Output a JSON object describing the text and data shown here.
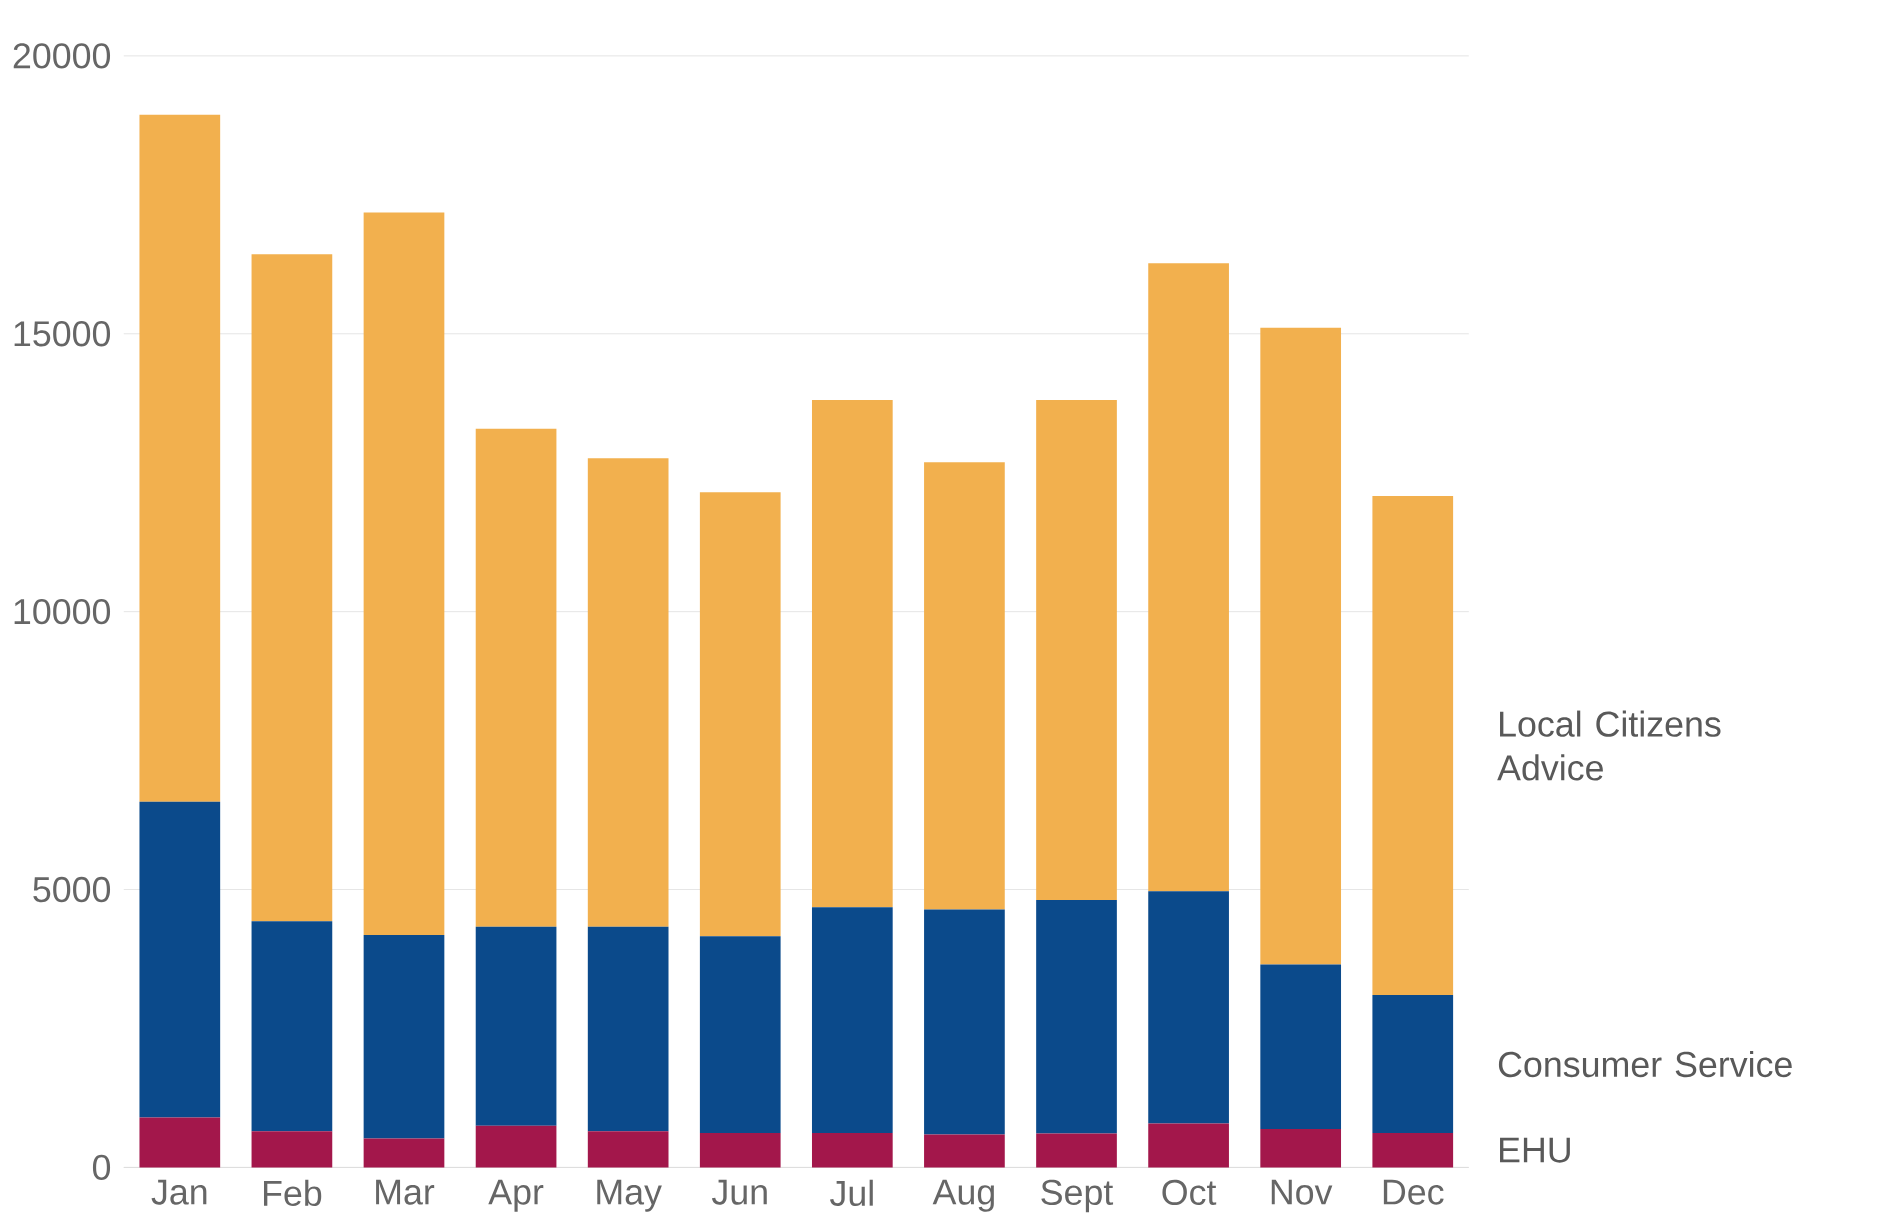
{
  "chart_data": {
    "type": "bar",
    "stacked": true,
    "grid": "y",
    "categories": [
      "Jan",
      "Feb",
      "Mar",
      "Apr",
      "May",
      "Jun",
      "Jul",
      "Aug",
      "Sept",
      "Oct",
      "Nov",
      "Dec"
    ],
    "ylim": [
      0,
      20000
    ],
    "yticks": [
      0,
      5000,
      10000,
      15000,
      20000
    ],
    "series": [
      {
        "name": "EHU",
        "color": "#a3174b",
        "values": [
          900,
          650,
          520,
          750,
          650,
          620,
          620,
          590,
          610,
          790,
          690,
          620
        ]
      },
      {
        "name": "Consumer Service",
        "color": "#0b4a8b",
        "values": [
          5680,
          3780,
          3660,
          3580,
          3680,
          3540,
          4060,
          4050,
          4200,
          4180,
          2960,
          2480
        ]
      },
      {
        "name": "Local Citizens Advice",
        "color": "#f2b04e",
        "values": [
          12360,
          12000,
          13000,
          8960,
          8430,
          7990,
          9130,
          8050,
          9000,
          11300,
          11460,
          8980
        ]
      }
    ]
  }
}
